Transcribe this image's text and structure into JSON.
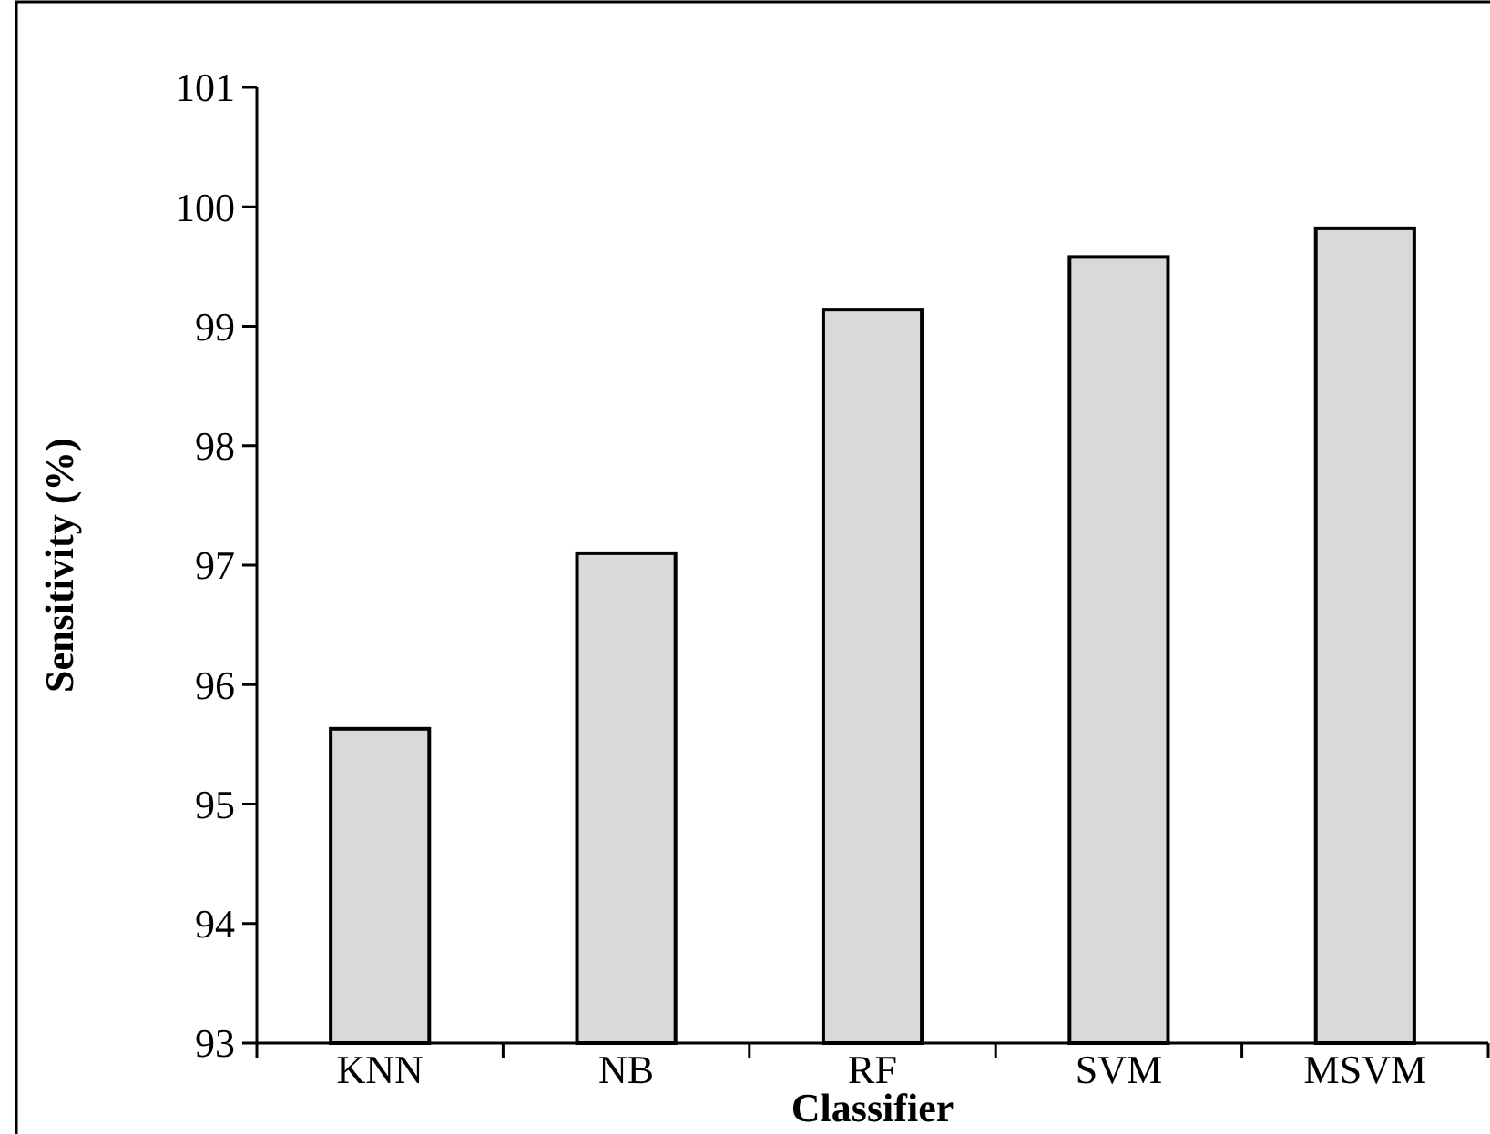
{
  "chart_data": {
    "type": "bar",
    "xlabel": "Classifier",
    "ylabel": "Sensitivity (%)",
    "categories": [
      "KNN",
      "NB",
      "RF",
      "SVM",
      "MSVM"
    ],
    "values": [
      95.63,
      97.1,
      99.14,
      99.58,
      99.82
    ],
    "color": "#d9d9d9",
    "ylim": [
      93,
      101
    ],
    "yticks": [
      93,
      94,
      95,
      96,
      97,
      98,
      99,
      100,
      101
    ]
  }
}
